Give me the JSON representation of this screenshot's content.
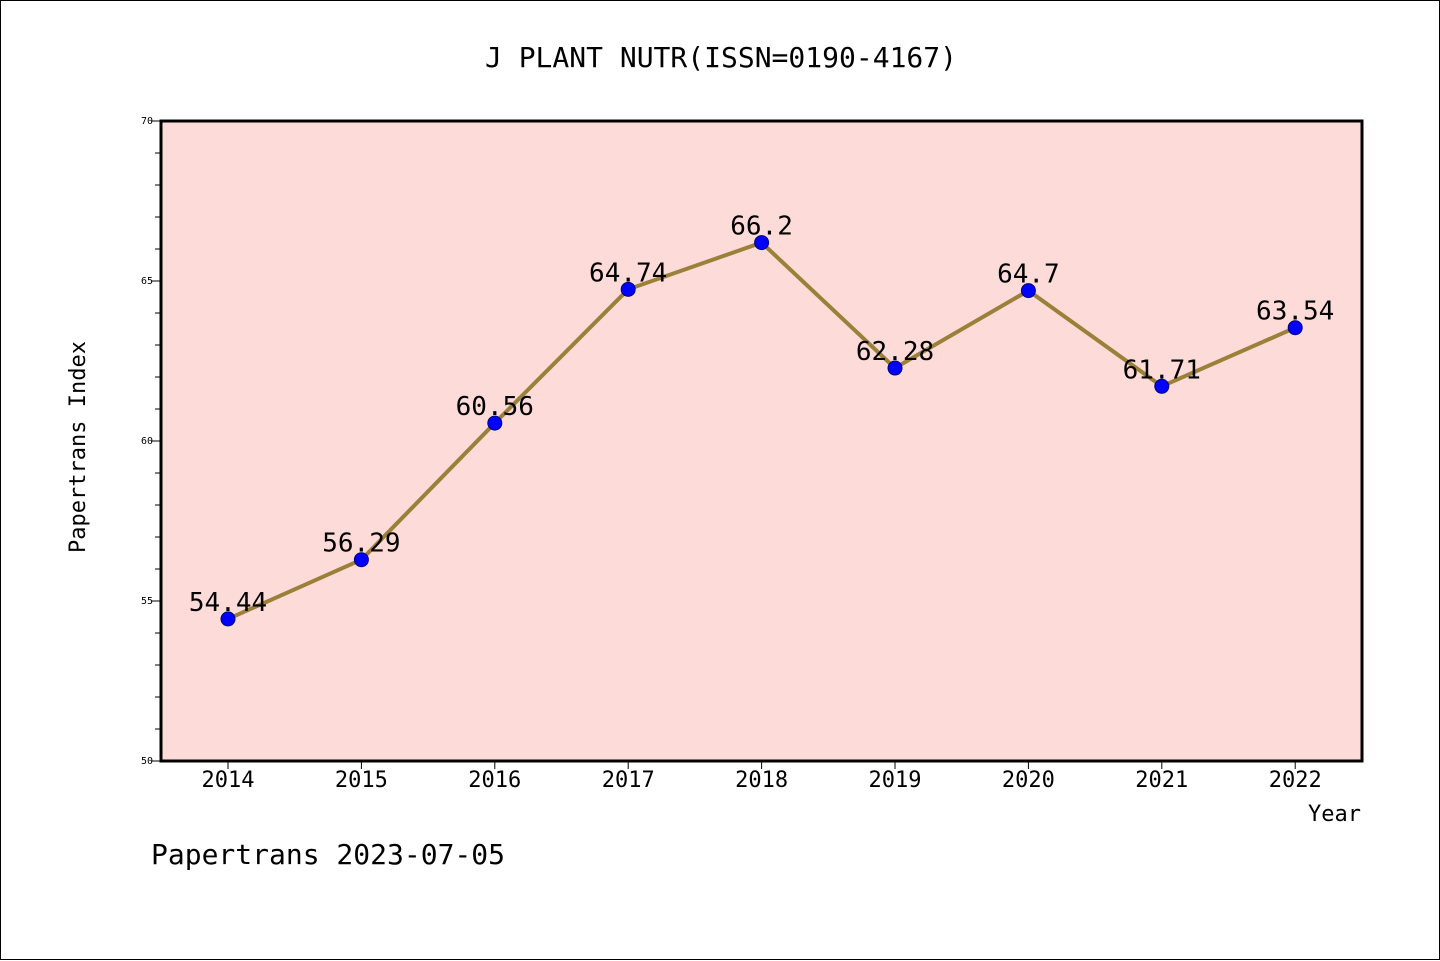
{
  "chart_data": {
    "type": "line",
    "title": "J PLANT NUTR(ISSN=0190-4167)",
    "xlabel": "Year",
    "ylabel": "Papertrans Index",
    "categories": [
      "2014",
      "2015",
      "2016",
      "2017",
      "2018",
      "2019",
      "2020",
      "2021",
      "2022"
    ],
    "series": [
      {
        "values": [
          54.44,
          56.29,
          60.56,
          64.74,
          66.2,
          62.28,
          64.7,
          61.71,
          63.54
        ]
      }
    ],
    "data_labels": [
      "54.44",
      "56.29",
      "60.56",
      "64.74",
      "66.2",
      "62.28",
      "64.7",
      "61.71",
      "63.54"
    ],
    "ylim": [
      50,
      70
    ],
    "yticks": [
      "50",
      "55",
      "60",
      "65",
      "70"
    ],
    "grid": false,
    "colors": {
      "plot_background": "#fddbd8",
      "line": "#9b8039",
      "marker": "#0000ff"
    }
  },
  "footer": "Papertrans 2023-07-05"
}
